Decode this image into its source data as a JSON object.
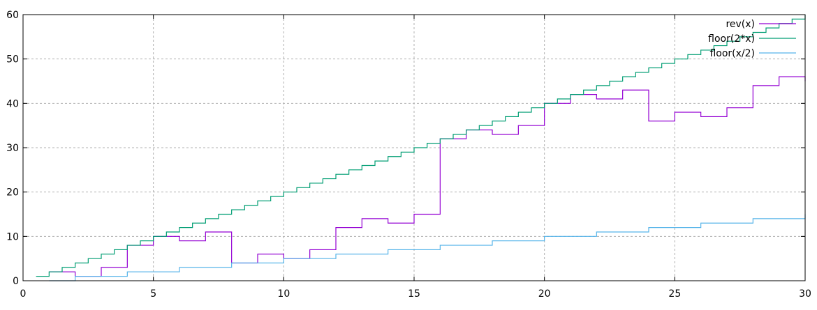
{
  "chart_data": {
    "type": "line",
    "step": true,
    "xlim": [
      0,
      30
    ],
    "ylim": [
      0,
      60
    ],
    "xticks": [
      0,
      5,
      10,
      15,
      20,
      25,
      30
    ],
    "yticks": [
      0,
      10,
      20,
      30,
      40,
      50,
      60
    ],
    "grid": true,
    "legend_position": "top-right",
    "series": [
      {
        "name": "rev(x)",
        "color": "#9400d3",
        "x": [
          1,
          2,
          3,
          4,
          5,
          6,
          7,
          8,
          9,
          10,
          11,
          12,
          13,
          14,
          15,
          16,
          17,
          18,
          19,
          20,
          21,
          22,
          23,
          24,
          25,
          26,
          27,
          28,
          29,
          30
        ],
        "y": [
          2,
          1,
          3,
          8,
          10,
          9,
          11,
          4,
          6,
          5,
          7,
          12,
          14,
          13,
          15,
          32,
          34,
          33,
          35,
          40,
          42,
          41,
          43,
          36,
          38,
          37,
          39,
          44,
          46,
          45
        ]
      },
      {
        "name": "floor(2*x)",
        "color": "#009e73",
        "x": [
          0.5,
          1,
          1.5,
          2,
          2.5,
          3,
          3.5,
          4,
          4.5,
          5,
          5.5,
          6,
          6.5,
          7,
          7.5,
          8,
          8.5,
          9,
          9.5,
          10,
          10.5,
          11,
          11.5,
          12,
          12.5,
          13,
          13.5,
          14,
          14.5,
          15,
          15.5,
          16,
          16.5,
          17,
          17.5,
          18,
          18.5,
          19,
          19.5,
          20,
          20.5,
          21,
          21.5,
          22,
          22.5,
          23,
          23.5,
          24,
          24.5,
          25,
          25.5,
          26,
          26.5,
          27,
          27.5,
          28,
          28.5,
          29,
          29.5,
          30
        ],
        "y": [
          1,
          2,
          3,
          4,
          5,
          6,
          7,
          8,
          9,
          10,
          11,
          12,
          13,
          14,
          15,
          16,
          17,
          18,
          19,
          20,
          21,
          22,
          23,
          24,
          25,
          26,
          27,
          28,
          29,
          30,
          31,
          32,
          33,
          34,
          35,
          36,
          37,
          38,
          39,
          40,
          41,
          42,
          43,
          44,
          45,
          46,
          47,
          48,
          49,
          50,
          51,
          52,
          53,
          54,
          55,
          56,
          57,
          58,
          59,
          60
        ]
      },
      {
        "name": "floor(x/2)",
        "color": "#56b4e9",
        "x": [
          1,
          2,
          3,
          4,
          5,
          6,
          7,
          8,
          9,
          10,
          11,
          12,
          13,
          14,
          15,
          16,
          17,
          18,
          19,
          20,
          21,
          22,
          23,
          24,
          25,
          26,
          27,
          28,
          29,
          30
        ],
        "y": [
          0,
          1,
          1,
          2,
          2,
          3,
          3,
          4,
          4,
          5,
          5,
          6,
          6,
          7,
          7,
          8,
          8,
          9,
          9,
          10,
          10,
          11,
          11,
          12,
          12,
          13,
          13,
          14,
          14,
          15
        ]
      }
    ]
  }
}
